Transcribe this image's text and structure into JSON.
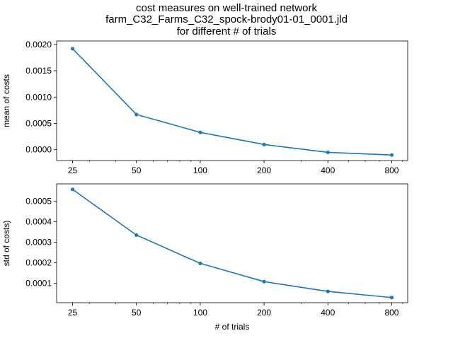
{
  "figure": {
    "title_lines": [
      "cost measures on well-trained network",
      "farm_C32_Farms_C32_spock-brody01-01_0001.jld",
      "for different # of trials"
    ],
    "line_color": "#1f77b4"
  },
  "chart_data": [
    {
      "type": "line",
      "x": [
        25,
        50,
        100,
        200,
        400,
        800
      ],
      "x_ticks": [
        25,
        50,
        100,
        200,
        400,
        800
      ],
      "x_scale": "log",
      "values": [
        0.00192,
        0.00067,
        0.00033,
        0.0001,
        -5e-05,
        -0.0001
      ],
      "ylim": [
        -0.000205,
        0.002065
      ],
      "y_ticks": [
        "0.0000",
        "0.0005",
        "0.0010",
        "0.0015",
        "0.0020"
      ],
      "y_tick_values": [
        0.0,
        0.0005,
        0.001,
        0.0015,
        0.002
      ],
      "xlabel": "",
      "ylabel": "mean of costs",
      "grid": false
    },
    {
      "type": "line",
      "x": [
        25,
        50,
        100,
        200,
        400,
        800
      ],
      "x_ticks": [
        25,
        50,
        100,
        200,
        400,
        800
      ],
      "x_scale": "log",
      "values": [
        0.000558,
        0.000335,
        0.000197,
        0.000108,
        6e-05,
        3e-05
      ],
      "ylim": [
        5e-06,
        0.000585
      ],
      "y_ticks": [
        "0.0001",
        "0.0002",
        "0.0003",
        "0.0004",
        "0.0005"
      ],
      "y_tick_values": [
        0.0001,
        0.0002,
        0.0003,
        0.0004,
        0.0005
      ],
      "xlabel": "# of trials",
      "ylabel": "std of costs)",
      "grid": false
    }
  ]
}
